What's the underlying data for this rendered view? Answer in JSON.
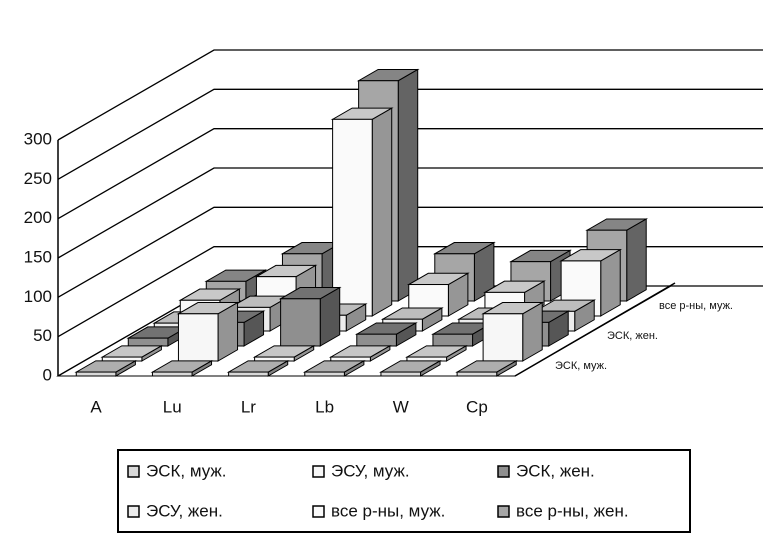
{
  "chart_data": {
    "type": "bar3d",
    "categories": [
      "A",
      "Lu",
      "Lr",
      "Lb",
      "W",
      "Cp"
    ],
    "series": [
      {
        "name": "ЭСК, муж.",
        "color": "#d9d9d9",
        "values": [
          5,
          5,
          5,
          5,
          5,
          5
        ]
      },
      {
        "name": "ЭСУ, муж.",
        "color": "#f7f7f7",
        "values": [
          5,
          60,
          5,
          5,
          5,
          60
        ]
      },
      {
        "name": "ЭСК, жен.",
        "color": "#8f8f8f",
        "values": [
          10,
          30,
          60,
          15,
          15,
          30
        ]
      },
      {
        "name": "ЭСУ, жен.",
        "color": "#ececec",
        "values": [
          10,
          30,
          20,
          15,
          15,
          25
        ]
      },
      {
        "name": "все р-ны, муж.",
        "color": "#fafafa",
        "values": [
          20,
          50,
          250,
          40,
          30,
          70
        ]
      },
      {
        "name": "все р-ны, жен.",
        "color": "#a6a6a6",
        "values": [
          25,
          60,
          280,
          60,
          50,
          90
        ]
      }
    ],
    "ylim": [
      0,
      300
    ],
    "yticks": [
      0,
      50,
      100,
      150,
      200,
      250,
      300
    ],
    "grid": true
  }
}
